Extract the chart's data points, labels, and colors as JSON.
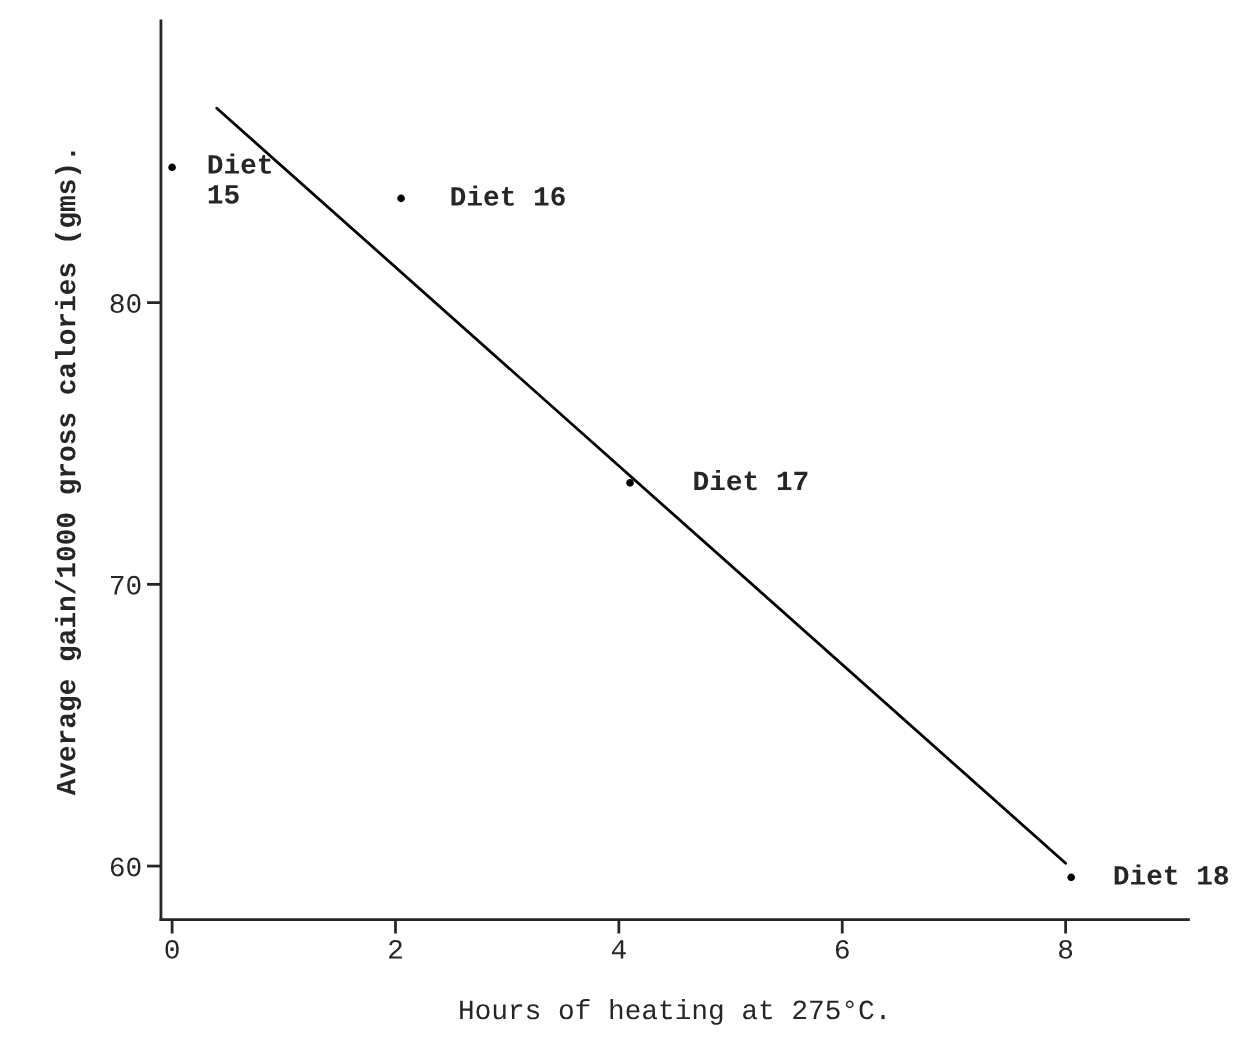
{
  "chart_data": {
    "type": "scatter",
    "xlabel": "Hours of heating at 275°C.",
    "ylabel": "Average gain/1000 gross calories (gms).",
    "series": [
      {
        "marker": "circle",
        "color": "#000000",
        "x": [
          0,
          2.05,
          4.1,
          8.05
        ],
        "values": [
          84.8,
          83.7,
          73.6,
          59.6
        ]
      },
      {
        "type": "line",
        "color": "#000000",
        "x": [
          0.4,
          8.0
        ],
        "values": [
          86.9,
          60.1
        ]
      }
    ],
    "annotations": [
      {
        "text": "Diet\n15",
        "x": 0,
        "y": 84.8
      },
      {
        "text": "Diet 16",
        "x": 2.05,
        "y": 83.7
      },
      {
        "text": "Diet 17",
        "x": 4.1,
        "y": 73.6
      },
      {
        "text": "Diet 18",
        "x": 8.05,
        "y": 59.6
      }
    ],
    "xlim": [
      -0.1,
      9.1
    ],
    "ylim": [
      58.1,
      90
    ],
    "xticks": [
      0,
      2,
      4,
      6,
      8
    ],
    "yticks": [
      60,
      70,
      80
    ],
    "grid": false,
    "legend": false
  }
}
